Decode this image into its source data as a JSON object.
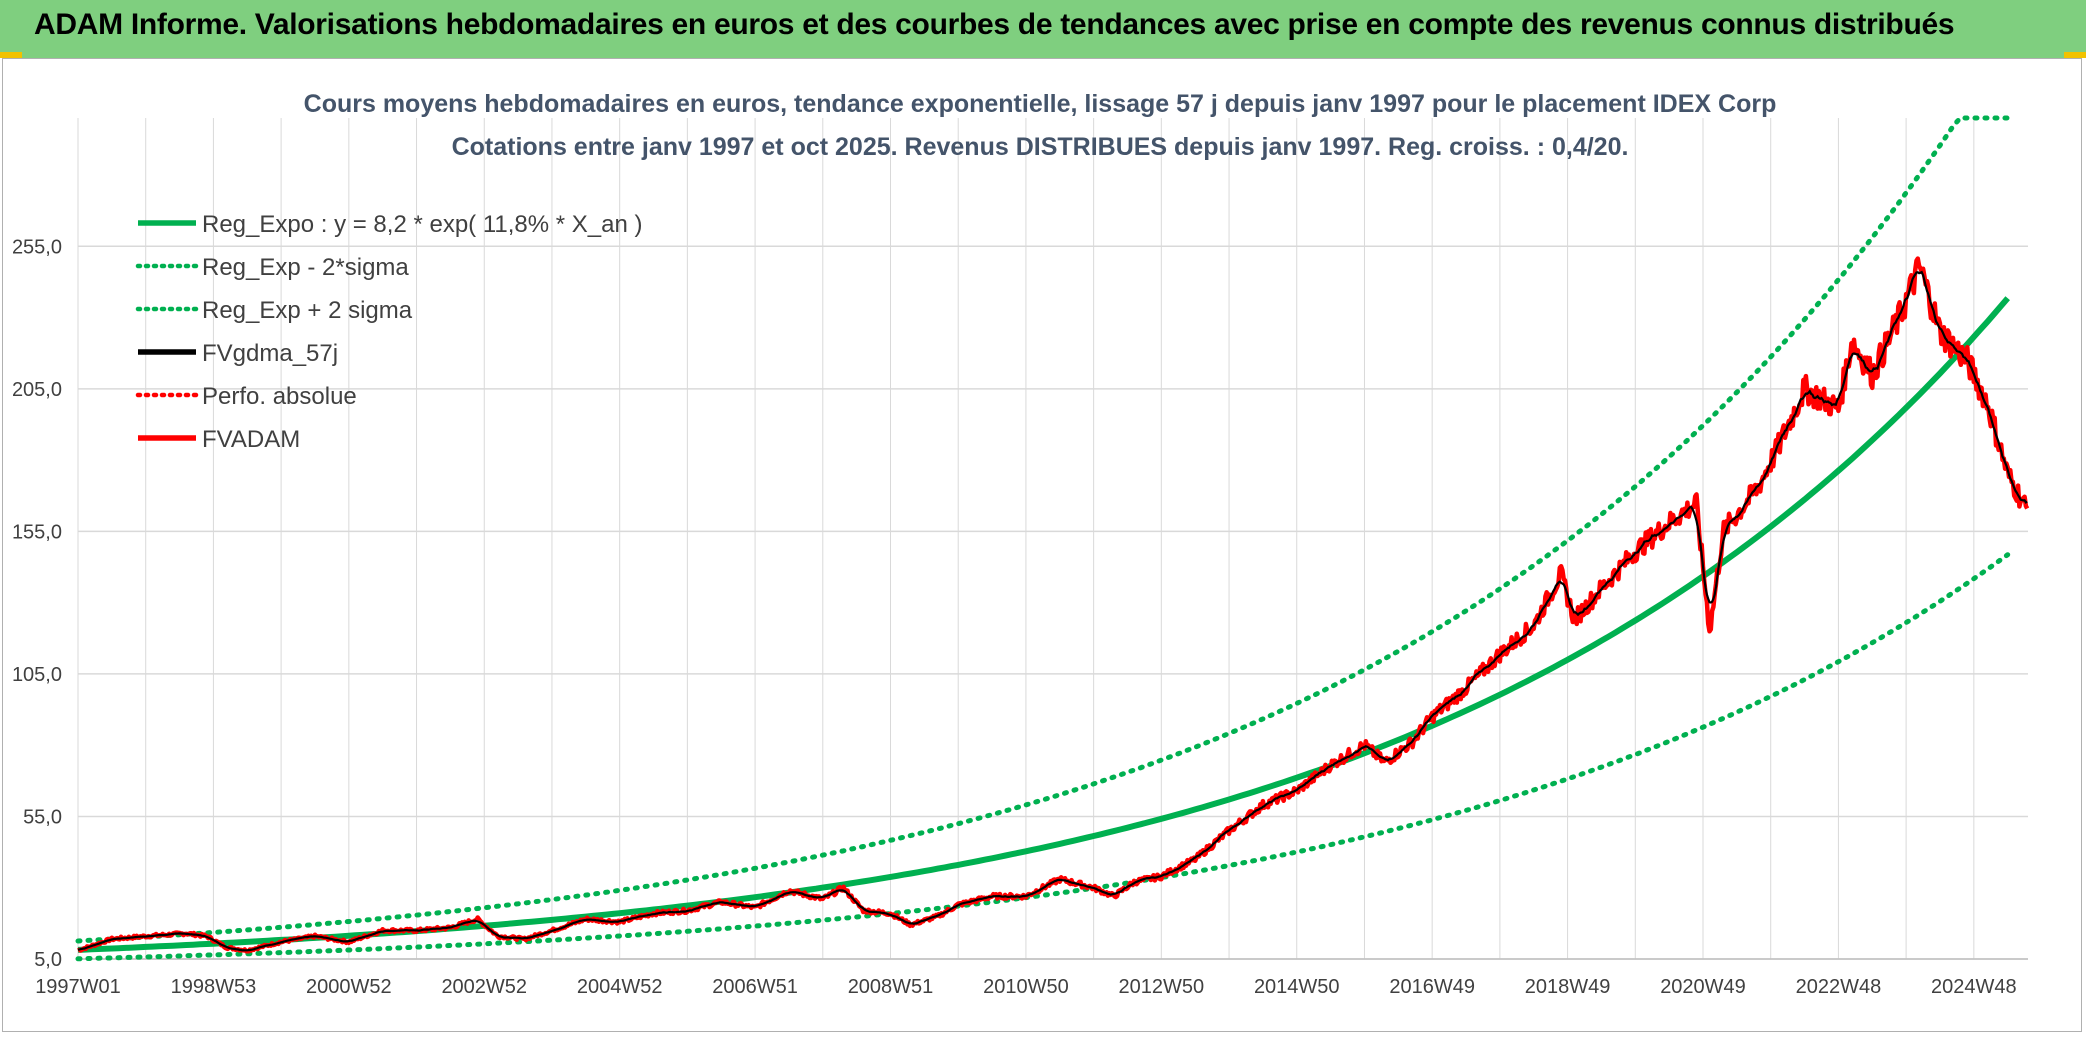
{
  "header": {
    "banner_title": "ADAM Informe. Valorisations hebdomadaires en euros et des courbes de tendances avec prise en compte des revenus connus distribués"
  },
  "chart_data": {
    "type": "line",
    "title": "Cours moyens hebdomadaires en euros, tendance exponentielle, lissage 57 j depuis janv 1997 pour le placement IDEX Corp",
    "subtitle": "Cotations entre janv 1997 et oct 2025. Revenus DISTRIBUES depuis janv 1997. Reg. croiss. : 0,4/20.",
    "x_tick_labels": [
      "1997W01",
      "1998W53",
      "2000W52",
      "2002W52",
      "2004W52",
      "2006W51",
      "2008W51",
      "2010W50",
      "2012W50",
      "2014W50",
      "2016W49",
      "2018W49",
      "2020W49",
      "2022W48",
      "2024W48"
    ],
    "x_tick_years": [
      1997.0,
      1999.0,
      2001.0,
      2003.0,
      2005.0,
      2007.0,
      2009.0,
      2011.0,
      2013.0,
      2015.0,
      2017.0,
      2019.0,
      2021.0,
      2023.0,
      2025.0
    ],
    "xlim": [
      1997.0,
      2025.8
    ],
    "y_tick_labels": [
      "5,0",
      "55,0",
      "105,0",
      "155,0",
      "205,0",
      "255,0"
    ],
    "y_tick_values": [
      5,
      55,
      105,
      155,
      205,
      255
    ],
    "ylim": [
      5,
      300
    ],
    "grid": true,
    "legend_position": "top-left",
    "colors": {
      "green": "#00b050",
      "black": "#000000",
      "red": "#ff0000"
    },
    "regression": {
      "a": 8.2,
      "rate": 0.118,
      "x0": 1997.0
    },
    "series": [
      {
        "name": "Reg_Expo : y = 8,2 * exp( 11,8% *  X_an )",
        "style": "solid",
        "color": "#00b050",
        "role": "trend"
      },
      {
        "name": "Reg_Exp - 2*sigma",
        "style": "dotted",
        "color": "#00b050",
        "role": "trend_low"
      },
      {
        "name": "Reg_Exp + 2 sigma",
        "style": "dotted",
        "color": "#00b050",
        "role": "trend_high"
      },
      {
        "name": "FVgdma_57j",
        "style": "solid",
        "color": "#000000",
        "role": "smoothed"
      },
      {
        "name": "Perfo. absolue",
        "style": "dotted",
        "color": "#ff0000",
        "role": "absolute"
      },
      {
        "name": "FVADAM",
        "style": "solid",
        "color": "#ff0000",
        "role": "price"
      }
    ],
    "price_points": [
      [
        1997.0,
        8
      ],
      [
        1997.5,
        12
      ],
      [
        1998.0,
        13
      ],
      [
        1998.6,
        14
      ],
      [
        1998.9,
        13
      ],
      [
        1999.2,
        9
      ],
      [
        1999.5,
        8
      ],
      [
        2000.0,
        11
      ],
      [
        2000.5,
        13
      ],
      [
        2001.0,
        11
      ],
      [
        2001.5,
        15
      ],
      [
        2002.0,
        15
      ],
      [
        2002.5,
        16
      ],
      [
        2002.9,
        19
      ],
      [
        2003.2,
        13
      ],
      [
        2003.6,
        12
      ],
      [
        2004.0,
        15
      ],
      [
        2004.5,
        19
      ],
      [
        2005.0,
        18
      ],
      [
        2005.5,
        21
      ],
      [
        2006.0,
        22
      ],
      [
        2006.5,
        25
      ],
      [
        2007.0,
        23
      ],
      [
        2007.5,
        29
      ],
      [
        2008.0,
        26
      ],
      [
        2008.3,
        30
      ],
      [
        2008.6,
        22
      ],
      [
        2009.0,
        21
      ],
      [
        2009.3,
        17
      ],
      [
        2009.7,
        20
      ],
      [
        2010.0,
        24
      ],
      [
        2010.5,
        27
      ],
      [
        2011.0,
        27
      ],
      [
        2011.5,
        33
      ],
      [
        2012.0,
        30
      ],
      [
        2012.3,
        27
      ],
      [
        2012.6,
        32
      ],
      [
        2013.0,
        34
      ],
      [
        2013.5,
        40
      ],
      [
        2014.0,
        50
      ],
      [
        2014.5,
        59
      ],
      [
        2015.0,
        64
      ],
      [
        2015.5,
        73
      ],
      [
        2016.0,
        80
      ],
      [
        2016.3,
        74
      ],
      [
        2016.7,
        81
      ],
      [
        2017.0,
        90
      ],
      [
        2017.5,
        100
      ],
      [
        2018.0,
        112
      ],
      [
        2018.5,
        122
      ],
      [
        2018.9,
        140
      ],
      [
        2019.1,
        124
      ],
      [
        2019.5,
        135
      ],
      [
        2020.0,
        148
      ],
      [
        2020.5,
        158
      ],
      [
        2020.9,
        165
      ],
      [
        2021.1,
        120
      ],
      [
        2021.3,
        155
      ],
      [
        2021.8,
        170
      ],
      [
        2022.1,
        184
      ],
      [
        2022.5,
        205
      ],
      [
        2023.0,
        198
      ],
      [
        2023.2,
        222
      ],
      [
        2023.5,
        210
      ],
      [
        2023.9,
        230
      ],
      [
        2024.2,
        248
      ],
      [
        2024.5,
        225
      ],
      [
        2024.9,
        215
      ],
      [
        2025.2,
        200
      ],
      [
        2025.5,
        175
      ],
      [
        2025.8,
        162
      ]
    ]
  },
  "legend": {
    "items": [
      "Reg_Expo : y = 8,2 * exp( 11,8% *  X_an )",
      "Reg_Exp - 2*sigma",
      "Reg_Exp + 2 sigma",
      "FVgdma_57j",
      "Perfo. absolue",
      "FVADAM"
    ]
  }
}
